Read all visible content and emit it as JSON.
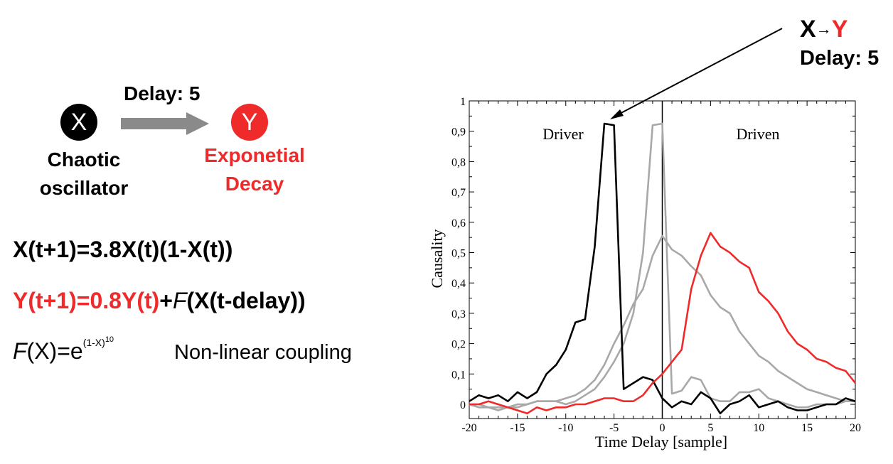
{
  "diagram": {
    "node_x": "X",
    "node_y": "Y",
    "delay_label": "Delay: 5",
    "x_caption_line1": "Chaotic",
    "x_caption_line2": "oscillator",
    "y_caption_line1": "Exponetial",
    "y_caption_line2": "Decay"
  },
  "equations": {
    "eq1": "X(t+1)=3.8X(t)(1-X(t))",
    "eq2_red": "Y(t+1)=0.8Y(t)",
    "eq2_plus": "+",
    "eq2_f": "F",
    "eq2_rest": "(X(t-delay))",
    "eq3_f": "F",
    "eq3_mid": "(X)=e",
    "eq3_sup": "(1-X)",
    "eq3_sup2": "10",
    "coupling": "Non-linear coupling"
  },
  "annotation": {
    "x": "X",
    "arrow": "→",
    "y": "Y",
    "delay": "Delay: 5"
  },
  "colors": {
    "accent_red": "#ee2a2a",
    "gray_series": "#a8a8a8",
    "arrow_gray": "#8a8a8a"
  },
  "chart_data": {
    "type": "line",
    "xlabel": "Time Delay [sample]",
    "ylabel": "Causality",
    "xlim": [
      -20,
      20
    ],
    "ylim": [
      -0.05,
      1
    ],
    "xticks": [
      -20,
      -15,
      -10,
      -5,
      0,
      5,
      10,
      15,
      20
    ],
    "yticks": [
      0,
      0.1,
      0.2,
      0.3,
      0.4,
      0.5,
      0.6,
      0.7,
      0.8,
      0.9,
      1
    ],
    "ytick_labels": [
      "0",
      "0,1",
      "0,2",
      "0,3",
      "0,4",
      "0,5",
      "0,6",
      "0,7",
      "0,8",
      "0,9",
      "1"
    ],
    "xtick_labels": [
      "-20",
      "-15",
      "-10",
      "-5",
      "0",
      "5",
      "10",
      "15",
      "20"
    ],
    "vline_x": 0,
    "region_labels": [
      "Driver",
      "Driven"
    ],
    "series": [
      {
        "color": "#a8a8a8",
        "x": [
          -20,
          -19,
          -18,
          -17,
          -16,
          -15,
          -14,
          -13,
          -12,
          -11,
          -10,
          -9,
          -8,
          -7,
          -6,
          -5,
          -4,
          -3,
          -2,
          -1,
          0,
          1,
          2,
          3,
          4,
          5,
          6,
          7,
          8,
          9,
          10,
          11,
          12,
          13,
          14,
          15,
          16,
          17,
          18,
          19,
          20
        ],
        "y": [
          0.0,
          -0.01,
          -0.01,
          -0.02,
          -0.01,
          -0.01,
          0.0,
          0.01,
          0.01,
          0.01,
          0.0,
          0.01,
          0.03,
          0.05,
          0.09,
          0.14,
          0.2,
          0.3,
          0.5,
          0.92,
          0.925,
          0.035,
          0.045,
          0.09,
          0.08,
          0.02,
          0.01,
          0.01,
          0.04,
          0.04,
          0.05,
          0.02,
          0.01,
          0.0,
          -0.01,
          -0.01,
          0.0,
          0.0,
          0.0,
          0.01,
          0.01
        ]
      },
      {
        "color": "#a8a8a8",
        "x": [
          -20,
          -19,
          -18,
          -17,
          -16,
          -15,
          -14,
          -13,
          -12,
          -11,
          -10,
          -9,
          -8,
          -7,
          -6,
          -5,
          -4,
          -3,
          -2,
          -1,
          0,
          1,
          2,
          3,
          4,
          5,
          6,
          7,
          8,
          9,
          10,
          11,
          12,
          13,
          14,
          15,
          16,
          17,
          18,
          19,
          20
        ],
        "y": [
          0.0,
          0.0,
          -0.01,
          -0.01,
          -0.01,
          0.0,
          0.0,
          0.01,
          0.01,
          0.01,
          0.02,
          0.03,
          0.05,
          0.08,
          0.13,
          0.2,
          0.26,
          0.33,
          0.38,
          0.49,
          0.555,
          0.51,
          0.49,
          0.455,
          0.425,
          0.36,
          0.32,
          0.3,
          0.24,
          0.2,
          0.16,
          0.14,
          0.11,
          0.09,
          0.07,
          0.05,
          0.04,
          0.03,
          0.02,
          0.01,
          0.01
        ]
      },
      {
        "color": "#000000",
        "x": [
          -20,
          -19,
          -18,
          -17,
          -16,
          -15,
          -14,
          -13,
          -12,
          -11,
          -10,
          -9,
          -8,
          -7,
          -6,
          -5,
          -4,
          -3,
          -2,
          -1,
          0,
          1,
          2,
          3,
          4,
          5,
          6,
          7,
          8,
          9,
          10,
          11,
          12,
          13,
          14,
          15,
          16,
          17,
          18,
          19,
          20
        ],
        "y": [
          0.01,
          0.03,
          0.02,
          0.03,
          0.01,
          0.04,
          0.02,
          0.04,
          0.1,
          0.13,
          0.18,
          0.27,
          0.28,
          0.52,
          0.925,
          0.92,
          0.05,
          0.07,
          0.09,
          0.08,
          0.02,
          -0.01,
          0.01,
          0.0,
          0.04,
          0.02,
          -0.03,
          0.0,
          0.01,
          0.03,
          -0.01,
          0.0,
          0.01,
          -0.01,
          -0.02,
          -0.02,
          -0.01,
          0.0,
          0.0,
          0.02,
          0.01
        ]
      },
      {
        "color": "#ee2a2a",
        "x": [
          -20,
          -19,
          -18,
          -17,
          -16,
          -15,
          -14,
          -13,
          -12,
          -11,
          -10,
          -9,
          -8,
          -7,
          -6,
          -5,
          -4,
          -3,
          -2,
          -1,
          0,
          1,
          2,
          3,
          4,
          5,
          6,
          7,
          8,
          9,
          10,
          11,
          12,
          13,
          14,
          15,
          16,
          17,
          18,
          19,
          20
        ],
        "y": [
          0.0,
          0.0,
          0.01,
          0.0,
          -0.01,
          -0.02,
          -0.03,
          -0.01,
          -0.02,
          -0.01,
          -0.01,
          0.0,
          0.0,
          0.01,
          0.02,
          0.02,
          0.01,
          0.01,
          0.03,
          0.07,
          0.1,
          0.14,
          0.18,
          0.38,
          0.49,
          0.565,
          0.52,
          0.5,
          0.47,
          0.45,
          0.37,
          0.34,
          0.3,
          0.24,
          0.2,
          0.18,
          0.15,
          0.14,
          0.12,
          0.11,
          0.07
        ]
      }
    ]
  }
}
